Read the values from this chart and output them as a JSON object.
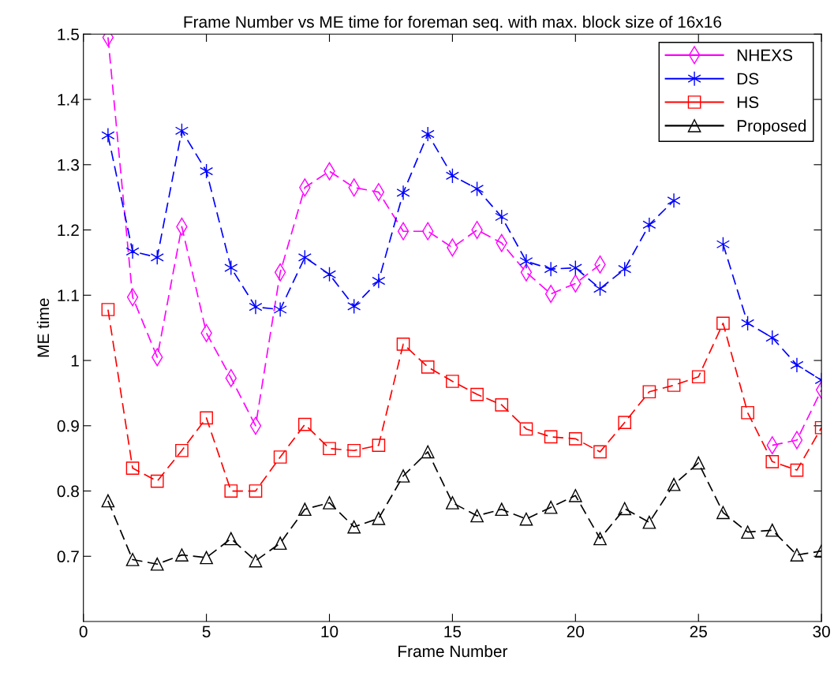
{
  "chart_data": {
    "type": "line",
    "title": "Frame Number vs ME time for foreman seq. with max. block size of 16x16",
    "xlabel": "Frame Number",
    "ylabel": "ME time",
    "x": [
      1,
      2,
      3,
      4,
      5,
      6,
      7,
      8,
      9,
      10,
      11,
      12,
      13,
      14,
      15,
      16,
      17,
      18,
      19,
      20,
      21,
      22,
      23,
      24,
      25,
      26,
      27,
      28,
      29,
      30
    ],
    "series": [
      {
        "name": "NHEXS",
        "color": "#ff00ff",
        "marker": "diamond",
        "values": [
          1.495,
          1.097,
          1.005,
          1.205,
          1.042,
          0.973,
          0.9,
          1.135,
          1.265,
          1.29,
          1.265,
          1.258,
          1.198,
          1.198,
          1.173,
          1.2,
          1.18,
          1.135,
          1.102,
          1.118,
          1.147,
          null,
          null,
          null,
          null,
          null,
          null,
          0.87,
          0.878,
          0.955
        ]
      },
      {
        "name": "DS",
        "color": "#0000ff",
        "marker": "cross",
        "values": [
          1.345,
          1.167,
          1.158,
          1.352,
          1.29,
          1.142,
          1.082,
          1.078,
          1.158,
          1.132,
          1.083,
          1.122,
          1.257,
          1.347,
          1.283,
          1.263,
          1.22,
          1.152,
          1.14,
          1.142,
          1.11,
          1.14,
          1.208,
          1.245,
          null,
          1.178,
          1.057,
          1.035,
          0.993,
          0.97
        ]
      },
      {
        "name": "HS",
        "color": "#ff0000",
        "marker": "square",
        "values": [
          1.078,
          0.835,
          0.815,
          0.862,
          0.912,
          0.8,
          0.8,
          0.852,
          0.902,
          0.865,
          0.862,
          0.87,
          1.025,
          0.99,
          0.968,
          0.948,
          0.932,
          0.895,
          0.883,
          0.88,
          0.86,
          0.905,
          0.952,
          0.962,
          0.975,
          1.057,
          0.92,
          0.845,
          0.832,
          0.897
        ]
      },
      {
        "name": "Proposed",
        "color": "#000000",
        "marker": "triangle",
        "values": [
          0.785,
          0.695,
          0.688,
          0.702,
          0.698,
          0.727,
          0.693,
          0.72,
          0.772,
          0.782,
          0.745,
          0.758,
          0.823,
          0.86,
          0.782,
          0.762,
          0.772,
          0.757,
          0.775,
          0.793,
          0.727,
          0.773,
          0.752,
          0.81,
          0.843,
          0.767,
          0.737,
          0.74,
          0.702,
          0.708
        ]
      }
    ],
    "xlim": [
      0,
      30
    ],
    "xticks": [
      0,
      5,
      10,
      15,
      20,
      25,
      30
    ],
    "ylim": [
      0.6,
      1.5
    ],
    "yticks": [
      0.7,
      0.8,
      0.9,
      {
        "value": 1.0,
        "label": "1"
      },
      1.1,
      1.2,
      1.3,
      1.4,
      1.5
    ],
    "line_style": "dashed",
    "legend": "top right",
    "grid": false
  }
}
